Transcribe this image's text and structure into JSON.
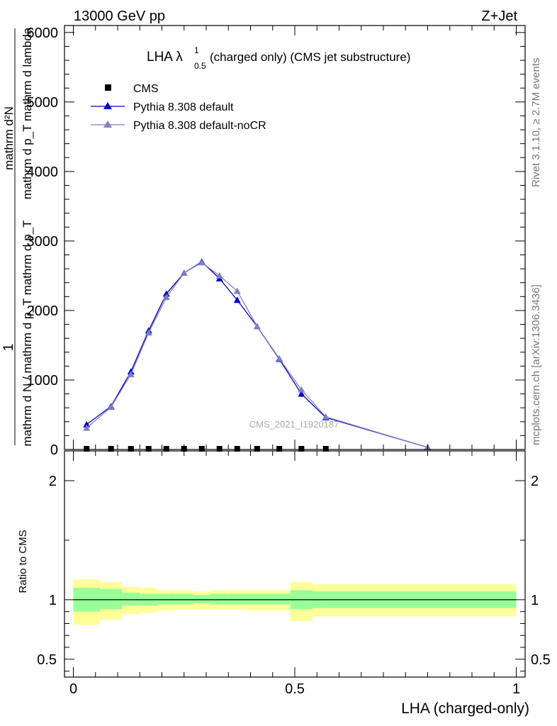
{
  "header": {
    "left": "13000 GeV pp",
    "right": "Z+Jet"
  },
  "side": {
    "rivet": "Rivet 3.1.10, ≥ 2.7M events",
    "mcplots": "mcplots.cern.ch [arXiv:1306.3436]"
  },
  "title": {
    "main": "LHA λ",
    "sup": "1",
    "sub": "0.5",
    "rest": " (charged only) (CMS jet substructure)"
  },
  "watermark": "CMS_2021_I1920187",
  "chart_data": [
    {
      "type": "line",
      "panel": "main",
      "ylabel_top": "mathrm d²N",
      "ylabel_bottom": "mathrm d p_T mathrm d lambda",
      "ylabel_full": "1 / mathrm d N / mathrm d p_T mathrm d p_T mathrm d^2N / mathrm d p_T mathrm d lambda",
      "ylabel_one": "1",
      "ylim": [
        0,
        6100
      ],
      "xlim": [
        -0.02,
        1.02
      ],
      "yticks": [
        {
          "v": 0,
          "label": "0"
        },
        {
          "v": 1000,
          "label": "1000"
        },
        {
          "v": 2000,
          "label": "2000"
        },
        {
          "v": 3000,
          "label": "3000"
        },
        {
          "v": 4000,
          "label": "4000"
        },
        {
          "v": 5000,
          "label": "5000"
        },
        {
          "v": 6000,
          "label": "6000"
        }
      ],
      "legend_position": "top-left",
      "series": [
        {
          "name": "CMS",
          "color": "#000000",
          "marker": "square",
          "x": [
            0.03,
            0.085,
            0.13,
            0.17,
            0.21,
            0.25,
            0.29,
            0.33,
            0.37,
            0.415,
            0.465,
            0.515,
            0.57
          ],
          "y": [
            0,
            0,
            0,
            0,
            0,
            0,
            0,
            0,
            0,
            0,
            0,
            0,
            0
          ]
        },
        {
          "name": "Pythia 8.308 default",
          "color": "#0000cc",
          "marker": "triangle",
          "x": [
            0.03,
            0.085,
            0.13,
            0.17,
            0.21,
            0.25,
            0.29,
            0.33,
            0.37,
            0.415,
            0.465,
            0.515,
            0.57,
            0.8
          ],
          "y": [
            360,
            620,
            1120,
            1710,
            2240,
            2540,
            2700,
            2460,
            2150,
            1770,
            1300,
            800,
            460,
            30
          ]
        },
        {
          "name": "Pythia 8.308 default-noCR",
          "color": "#7f7fbf",
          "marker": "triangle",
          "x": [
            0.03,
            0.085,
            0.13,
            0.17,
            0.21,
            0.25,
            0.29,
            0.33,
            0.37,
            0.415,
            0.465,
            0.515,
            0.57,
            0.8
          ],
          "y": [
            310,
            610,
            1080,
            1680,
            2190,
            2540,
            2690,
            2500,
            2280,
            1770,
            1310,
            860,
            470,
            30
          ]
        }
      ]
    },
    {
      "type": "area",
      "panel": "ratio",
      "ylabel": "Ratio to CMS",
      "xlabel": "LHA (charged-only)",
      "ylim": [
        0.35,
        2.25
      ],
      "xlim": [
        -0.02,
        1.02
      ],
      "yticks": [
        {
          "v": 0.5,
          "label": "0.5"
        },
        {
          "v": 1,
          "label": "1"
        },
        {
          "v": 2,
          "label": "2"
        }
      ],
      "xticks": [
        {
          "v": 0,
          "label": "0"
        },
        {
          "v": 0.5,
          "label": "0.5"
        },
        {
          "v": 1,
          "label": "1"
        }
      ],
      "reference_line": 1,
      "bands": [
        {
          "x0": 0.0,
          "x1": 0.06,
          "inner": [
            0.9,
            1.1
          ],
          "outer": [
            0.79,
            1.17
          ]
        },
        {
          "x0": 0.06,
          "x1": 0.11,
          "inner": [
            0.92,
            1.09
          ],
          "outer": [
            0.83,
            1.15
          ]
        },
        {
          "x0": 0.11,
          "x1": 0.15,
          "inner": [
            0.95,
            1.06
          ],
          "outer": [
            0.88,
            1.11
          ]
        },
        {
          "x0": 0.15,
          "x1": 0.19,
          "inner": [
            0.95,
            1.05
          ],
          "outer": [
            0.89,
            1.1
          ]
        },
        {
          "x0": 0.19,
          "x1": 0.23,
          "inner": [
            0.96,
            1.05
          ],
          "outer": [
            0.91,
            1.08
          ]
        },
        {
          "x0": 0.23,
          "x1": 0.27,
          "inner": [
            0.96,
            1.05
          ],
          "outer": [
            0.92,
            1.08
          ]
        },
        {
          "x0": 0.27,
          "x1": 0.31,
          "inner": [
            0.97,
            1.04
          ],
          "outer": [
            0.92,
            1.07
          ]
        },
        {
          "x0": 0.31,
          "x1": 0.35,
          "inner": [
            0.96,
            1.05
          ],
          "outer": [
            0.92,
            1.08
          ]
        },
        {
          "x0": 0.35,
          "x1": 0.39,
          "inner": [
            0.96,
            1.05
          ],
          "outer": [
            0.92,
            1.08
          ]
        },
        {
          "x0": 0.39,
          "x1": 0.44,
          "inner": [
            0.96,
            1.05
          ],
          "outer": [
            0.91,
            1.08
          ]
        },
        {
          "x0": 0.44,
          "x1": 0.49,
          "inner": [
            0.96,
            1.05
          ],
          "outer": [
            0.91,
            1.08
          ]
        },
        {
          "x0": 0.49,
          "x1": 0.54,
          "inner": [
            0.92,
            1.08
          ],
          "outer": [
            0.82,
            1.15
          ]
        },
        {
          "x0": 0.54,
          "x1": 1.0,
          "inner": [
            0.93,
            1.07
          ],
          "outer": [
            0.86,
            1.13
          ]
        }
      ],
      "band_colors": {
        "inner": "#99ff99",
        "outer": "#ffff99"
      }
    }
  ]
}
